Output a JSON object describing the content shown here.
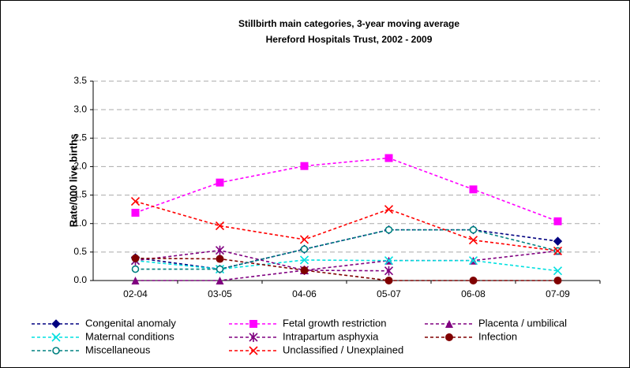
{
  "chart_data": {
    "type": "line",
    "title": "Stillbirth main categories, 3-year moving average",
    "subtitle": "Hereford Hospitals Trust, 2002 - 2009",
    "y_label": "Rate/000 live births",
    "categories": [
      "02-04",
      "03-05",
      "04-06",
      "05-07",
      "06-08",
      "07-09"
    ],
    "ylim": [
      0,
      3.5
    ],
    "yticks": [
      {
        "value": 0,
        "label": "0.0"
      },
      0.5,
      {
        "value": 1,
        "label": "1.0"
      },
      1.5,
      {
        "value": 2,
        "label": "2.0"
      },
      2.5,
      {
        "value": 3,
        "label": "3.0"
      },
      3.5
    ],
    "grid": true,
    "legend": "bottom",
    "series": [
      {
        "name": "Congenital anomaly",
        "color": "#000080",
        "marker": "diamond",
        "values": [
          0.4,
          0.2,
          0.55,
          0.89,
          0.89,
          0.69
        ]
      },
      {
        "name": "Fetal growth restriction",
        "color": "#ff00ff",
        "marker": "square",
        "values": [
          1.19,
          1.72,
          2.01,
          2.15,
          1.6,
          1.04
        ]
      },
      {
        "name": "Placenta / umbilical",
        "color": "#800080",
        "marker": "triangle",
        "values": [
          0,
          0,
          0.18,
          0.35,
          0.35,
          0.52
        ]
      },
      {
        "name": "Maternal conditions",
        "color": "#00e0e0",
        "marker": "x",
        "values": [
          0.35,
          0.2,
          0.36,
          0.35,
          0.35,
          0.17
        ]
      },
      {
        "name": "Intrapartum asphyxia",
        "color": "#800080",
        "marker": "star",
        "values": [
          0.35,
          0.53,
          0.18,
          0.17,
          null,
          null
        ]
      },
      {
        "name": "Infection",
        "color": "#800000",
        "marker": "circle",
        "values": [
          0.39,
          0.38,
          0.18,
          0,
          0,
          0
        ]
      },
      {
        "name": "Miscellaneous",
        "color": "#008080",
        "marker": "open-circle",
        "values": [
          0.2,
          0.2,
          0.55,
          0.89,
          0.89,
          0.52
        ]
      },
      {
        "name": "Unclassified / Unexplained",
        "color": "#ff0000",
        "marker": "x",
        "values": [
          1.39,
          0.96,
          0.72,
          1.25,
          0.71,
          0.52
        ]
      }
    ]
  }
}
